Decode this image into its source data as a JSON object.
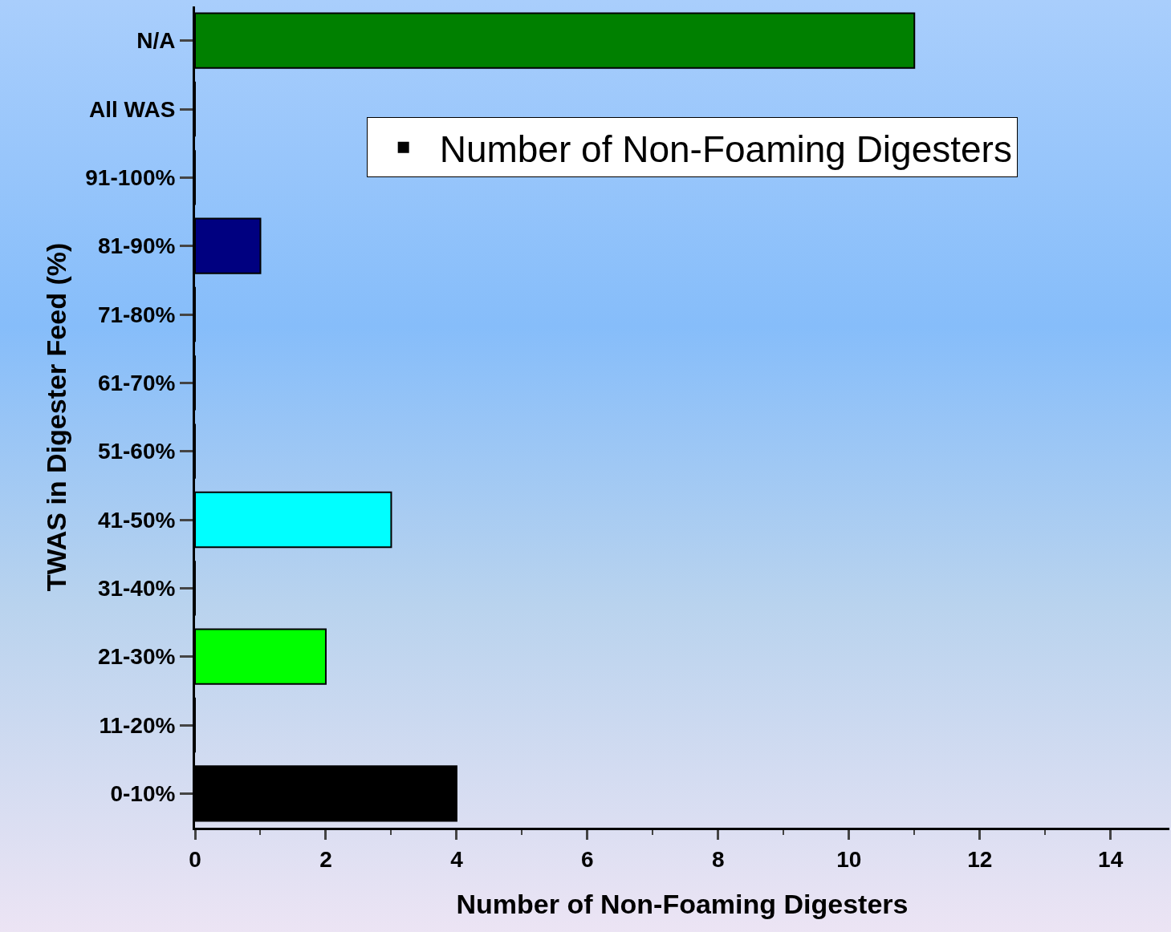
{
  "chart_data": {
    "type": "bar",
    "orientation": "horizontal",
    "xlabel": "Number of Non-Foaming Digesters",
    "ylabel": "TWAS in Digester Feed (%)",
    "categories": [
      "N/A",
      "All WAS",
      "91-100%",
      "81-90%",
      "71-80%",
      "61-70%",
      "51-60%",
      "41-50%",
      "31-40%",
      "21-30%",
      "11-20%",
      "0-10%"
    ],
    "series": [
      {
        "name": "Number of Non-Foaming Digesters",
        "color": "#000000",
        "colors": [
          "#008000",
          null,
          null,
          "#000080",
          null,
          null,
          null,
          "#00ffff",
          null,
          "#00ff00",
          null,
          null
        ],
        "values": [
          11,
          0,
          0,
          1,
          0,
          0,
          0,
          3,
          0,
          2,
          0,
          4
        ]
      }
    ],
    "xlim": [
      0,
      14.9
    ],
    "xticks": [
      0,
      2,
      4,
      6,
      8,
      10,
      12,
      14
    ],
    "grid": false,
    "legend": "top right"
  }
}
